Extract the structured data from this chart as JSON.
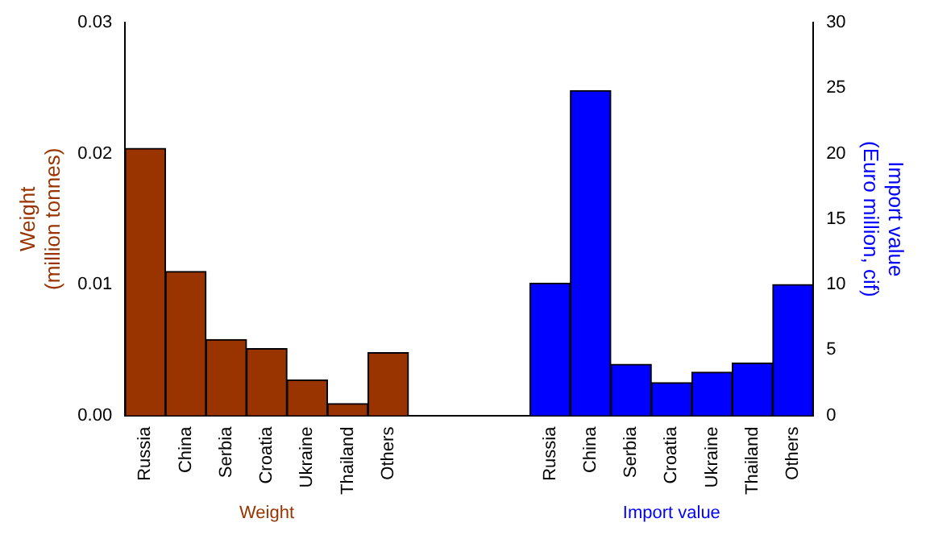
{
  "chart_data": {
    "type": "bar",
    "categories": [
      "Russia",
      "China",
      "Serbia",
      "Croatia",
      "Ukraine",
      "Thailand",
      "Others",
      null,
      null,
      null,
      "Russia",
      "China",
      "Serbia",
      "Croatia",
      "Ukraine",
      "Thailand",
      "Others"
    ],
    "series": [
      {
        "name": "Weight",
        "color": "#993300",
        "values": [
          0.0204,
          0.011,
          0.0058,
          0.0051,
          0.0027,
          0.0009,
          0.0048,
          null,
          null,
          null,
          null,
          null,
          null,
          null,
          null,
          null,
          null
        ]
      },
      {
        "name": "Import value",
        "color": "#0000ff",
        "axis": "y2",
        "values": [
          null,
          null,
          null,
          null,
          null,
          null,
          null,
          null,
          null,
          null,
          10.1,
          24.8,
          3.9,
          2.5,
          3.3,
          4.0,
          10.0
        ]
      }
    ],
    "ylabel": "Weight\n(million tonnes)",
    "y2label": "Import value\n(Euro million, cif)",
    "ylim": [
      0,
      0.03
    ],
    "yticks": [
      {
        "value": 0,
        "label": "0.00"
      },
      {
        "value": 0.01,
        "label": "0.01"
      },
      {
        "value": 0.02,
        "label": "0.02"
      },
      {
        "value": 0.03,
        "label": "0.03"
      }
    ],
    "y2lim": [
      0,
      30
    ],
    "y2ticks": [
      0,
      5,
      10,
      15,
      20,
      25,
      30
    ],
    "grid": false,
    "legend": false
  }
}
